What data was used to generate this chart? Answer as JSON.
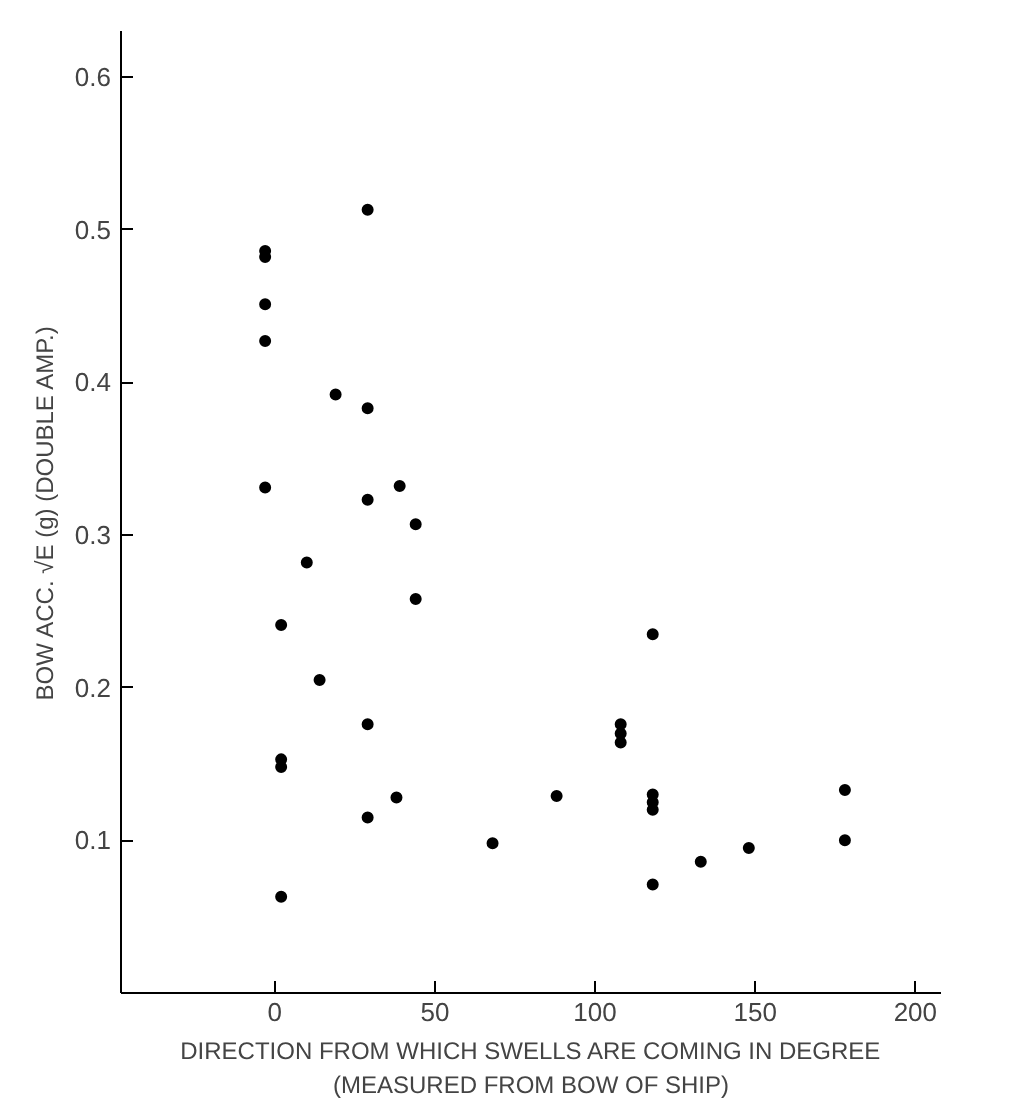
{
  "chart_data": {
    "type": "scatter",
    "xlabel": "DIRECTION FROM WHICH SWELLS ARE COMING IN DEGREE\n(MEASURED FROM BOW OF SHIP)",
    "ylabel": "BOW ACC. √E (g) (DOUBLE AMP.)",
    "xlim": [
      -48,
      208
    ],
    "ylim": [
      0,
      0.63
    ],
    "xticks": [
      0,
      50,
      100,
      150,
      200
    ],
    "yticks": [
      0.1,
      0.2,
      0.3,
      0.4,
      0.5,
      0.6
    ],
    "grid": false,
    "marker": "circle",
    "series": [
      {
        "color": "#000000",
        "x": [
          -3,
          -3,
          -3,
          -3,
          29,
          19,
          29,
          -3,
          29,
          39,
          44,
          10,
          44,
          2,
          14,
          29,
          2,
          2,
          38,
          29,
          2,
          108,
          108,
          108,
          118,
          88,
          118,
          118,
          118,
          178,
          68,
          148,
          133,
          178,
          118
        ],
        "values": [
          0.486,
          0.482,
          0.451,
          0.427,
          0.513,
          0.392,
          0.383,
          0.331,
          0.323,
          0.332,
          0.307,
          0.282,
          0.258,
          0.241,
          0.205,
          0.176,
          0.153,
          0.148,
          0.128,
          0.115,
          0.063,
          0.176,
          0.17,
          0.164,
          0.235,
          0.129,
          0.13,
          0.125,
          0.12,
          0.133,
          0.098,
          0.095,
          0.086,
          0.1,
          0.071
        ]
      }
    ]
  }
}
